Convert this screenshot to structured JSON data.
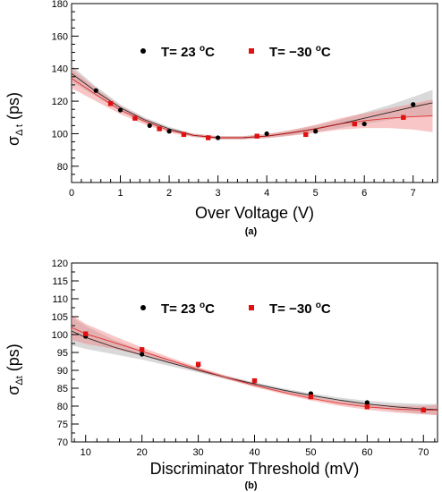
{
  "chart_data": [
    {
      "type": "scatter",
      "panel_label": "(a)",
      "xlabel": "Over Voltage (V)",
      "ylabel_main": "σ",
      "ylabel_sub": "Δ t",
      "ylabel_unit": " (ps)",
      "xlim": [
        0,
        7.5
      ],
      "ylim": [
        70,
        180
      ],
      "xticks": [
        0,
        1,
        2,
        3,
        4,
        5,
        6,
        7
      ],
      "yticks": [
        80,
        100,
        120,
        140,
        160,
        180
      ],
      "grid": false,
      "legend_placement": "top",
      "series": [
        {
          "name": "T= 23 °C",
          "legend_main": "T= 23 ",
          "legend_sup": "o",
          "legend_unit": "C",
          "color": "#000000",
          "marker": "circle",
          "band_color": "#aaaaaa",
          "x": [
            0.5,
            1.0,
            1.6,
            2.0,
            3.0,
            4.0,
            5.0,
            6.0,
            7.0
          ],
          "y": [
            126.5,
            114.5,
            105,
            101.5,
            97.5,
            100,
            101.5,
            106,
            118
          ],
          "fit_x": [
            0.0,
            0.5,
            1.0,
            1.5,
            2.0,
            2.5,
            3.0,
            3.5,
            4.0,
            4.5,
            5.0,
            5.5,
            6.0,
            6.5,
            7.0,
            7.4
          ],
          "fit_y": [
            137,
            126,
            116,
            108.5,
            103,
            99,
            97.5,
            97.5,
            98.5,
            100.5,
            103,
            106,
            109.5,
            113,
            116.5,
            119
          ],
          "band_half": [
            5,
            3,
            2,
            1.5,
            1.2,
            1,
            1,
            1,
            1.2,
            1.5,
            2,
            2.5,
            3.5,
            4.5,
            6,
            8
          ]
        },
        {
          "name": "T= −30 °C",
          "legend_main": "T= −30 ",
          "legend_sup": "o",
          "legend_unit": "C",
          "color": "#e01010",
          "marker": "square",
          "band_color": "#f08080",
          "x": [
            0.8,
            1.3,
            1.8,
            2.3,
            2.8,
            3.8,
            4.8,
            5.8,
            6.8
          ],
          "y": [
            118.5,
            109.5,
            103,
            99.5,
            97.5,
            98.5,
            99.5,
            106,
            110
          ],
          "fit_x": [
            0.0,
            0.5,
            1.0,
            1.5,
            2.0,
            2.5,
            3.0,
            3.5,
            4.0,
            4.5,
            5.0,
            5.5,
            6.0,
            6.5,
            7.0,
            7.4
          ],
          "fit_y": [
            134,
            124,
            114.5,
            107.5,
            102,
            99,
            97.5,
            97.5,
            98.5,
            100.5,
            103,
            106,
            108,
            109.5,
            110.5,
            111
          ],
          "band_half": [
            6,
            4,
            2.5,
            1.8,
            1.3,
            1.1,
            1,
            1,
            1.3,
            1.8,
            2.5,
            3.5,
            4.5,
            6,
            8,
            10
          ]
        }
      ]
    },
    {
      "type": "scatter",
      "panel_label": "(b)",
      "xlabel": "Discriminator Threshold (mV)",
      "ylabel_main": "σ",
      "ylabel_sub": "Δt",
      "ylabel_unit": " (ps)",
      "xlim": [
        7.5,
        72.5
      ],
      "ylim": [
        70,
        120
      ],
      "xticks": [
        10,
        20,
        30,
        40,
        50,
        60,
        70
      ],
      "yticks": [
        70,
        75,
        80,
        85,
        90,
        95,
        100,
        105,
        110,
        115,
        120
      ],
      "grid": false,
      "legend_placement": "top",
      "series": [
        {
          "name": "T= 23 °C",
          "legend_main": "T= 23 ",
          "legend_sup": "o",
          "legend_unit": "C",
          "color": "#000000",
          "marker": "circle",
          "band_color": "#aaaaaa",
          "x": [
            10,
            20,
            30,
            40,
            50,
            60,
            70
          ],
          "y": [
            99.5,
            94.5,
            91.5,
            87,
            83.5,
            81,
            79
          ],
          "fit_x": [
            7.5,
            10,
            15,
            20,
            25,
            30,
            35,
            40,
            45,
            50,
            55,
            60,
            65,
            70,
            72.5
          ],
          "fit_y": [
            101,
            99.2,
            96.5,
            94.3,
            92.1,
            90,
            88,
            86.2,
            84.5,
            83,
            81.7,
            80.6,
            79.8,
            79.2,
            79
          ],
          "band_half": [
            4,
            3.2,
            2,
            1.3,
            0.9,
            0.6,
            0.5,
            0.5,
            0.5,
            0.6,
            0.7,
            0.9,
            1.1,
            1.4,
            1.6
          ]
        },
        {
          "name": "T= −30 °C",
          "legend_main": "T= −30 ",
          "legend_sup": "o",
          "legend_unit": "C",
          "color": "#e01010",
          "marker": "square",
          "band_color": "#f08080",
          "x": [
            10,
            20,
            30,
            40,
            50,
            60,
            70
          ],
          "y": [
            100.2,
            95.8,
            91.7,
            87.1,
            82.6,
            79.8,
            78.9
          ],
          "fit_x": [
            7.5,
            10,
            15,
            20,
            25,
            30,
            35,
            40,
            45,
            50,
            55,
            60,
            65,
            70,
            72.5
          ],
          "fit_y": [
            102,
            100.2,
            97.8,
            95.3,
            92.8,
            90.3,
            88,
            85.8,
            83.9,
            82.2,
            80.8,
            79.8,
            79.2,
            78.9,
            78.9
          ],
          "band_half": [
            3.5,
            2.8,
            1.8,
            1.1,
            0.8,
            0.6,
            0.5,
            0.5,
            0.5,
            0.6,
            0.7,
            0.8,
            1,
            1.2,
            1.4
          ]
        }
      ]
    }
  ]
}
